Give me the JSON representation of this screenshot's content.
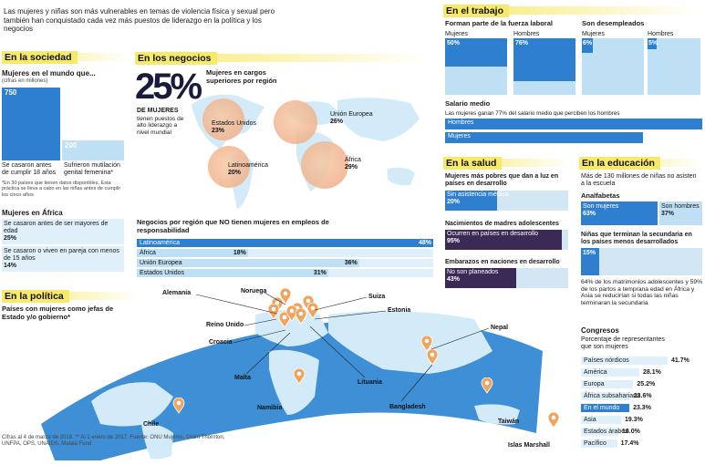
{
  "intro": "Las mujeres y niñas son más vulnerables en temas de violencia física y sexual pero también han conquistado cada vez más puestos de liderazgo en la política y los negocios",
  "sociedad": {
    "header": "En la sociedad",
    "title": "Mujeres en el mundo que...",
    "subtitle": "(cifras en millones)",
    "bar1_value": "750",
    "bar1_label": "Se casaron antes de cumplir 18 años",
    "bar2_value": "200",
    "bar2_label": "Sufrieron mutilación genital femenina*",
    "footnote": "*En 30 países que tienen datos disponibles. Esta práctica se lleva a cabo en las niñas antes de cumplir los cinco años",
    "africa_title": "Mujeres en África",
    "africa1_label": "Se casaron antes de ser mayores de edad",
    "africa1_value": "25%",
    "africa2_label": "Se casaron o viven en pareja con menos de 15 años",
    "africa2_value": "14%"
  },
  "negocios": {
    "header": "En los negocios",
    "big": "25%",
    "big_sub": "DE MUJERES",
    "big_desc": "tienen puestos de alto liderazgo a nivel mundial",
    "map_title": "Mujeres en cargos superiores por región",
    "regions": [
      {
        "name": "Estados Unidos",
        "value": "23%"
      },
      {
        "name": "Unión Europea",
        "value": "26%"
      },
      {
        "name": "Latinoamérica",
        "value": "20%"
      },
      {
        "name": "África",
        "value": "29%"
      }
    ],
    "nomen_title": "Negocios por región que NO tienen mujeres en empleos de responsabilidad",
    "nomen": [
      {
        "name": "Latinoamérica",
        "value": "48%",
        "pct": 48
      },
      {
        "name": "África",
        "value": "18%",
        "pct": 18
      },
      {
        "name": "Unión Europea",
        "value": "36%",
        "pct": 36
      },
      {
        "name": "Estados Unidos",
        "value": "31%",
        "pct": 31
      }
    ]
  },
  "trabajo": {
    "header": "En el trabajo",
    "fuerza_title": "Forman parte de la fuerza laboral",
    "desempleo_title": "Son desempleados",
    "mujeres": "Mujeres",
    "hombres": "Hombres",
    "fuerza_m": "50%",
    "fuerza_h": "76%",
    "des_m": "6%",
    "des_h": "5%",
    "fuerza_m_pct": 50,
    "fuerza_h_pct": 76,
    "des_m_pct": 6,
    "des_h_pct": 5,
    "salario_title": "Salario medio",
    "salario_sub": "Las mujeres ganan 77% del salario medio que perciben los hombres",
    "sal_h": "Hombres",
    "sal_m": "Mujeres",
    "sal_m_pct": 77
  },
  "salud": {
    "header": "En la salud",
    "t1": "Mujeres más pobres que dan a luz en países en desarrollo",
    "b1_label": "Sin asistencia médica",
    "b1_value": "20%",
    "b1_pct": 20,
    "t2": "Nacimientos de madres adolescentes",
    "b2_label": "Ocurren en países en desarrollo",
    "b2_value": "95%",
    "b2_pct": 95,
    "t3": "Embarazos en naciones en desarrollo",
    "b3_label": "No son planeados",
    "b3_value": "43%",
    "b3_pct": 43
  },
  "educacion": {
    "header": "En la educación",
    "intro": "Más de 130 millones de niñas no asisten a la escuela",
    "anal_title": "Analfabetas",
    "anal_m": "Son mujeres",
    "anal_m_value": "63%",
    "anal_h": "Son hombres",
    "anal_h_value": "37%",
    "sec_title": "Niñas que terminan la secundaria en los países menos desarrollados",
    "sec_value": "15%",
    "sec_pct": 15,
    "note": "64% de los matrimonios adolescentes y 59% de los partos a temprana edad en África y Asia se reducirían si todas las niñas terminaran la secundaria"
  },
  "politica": {
    "header": "En la política",
    "title": "Países con mujeres como jefas de Estado y/o gobierno*",
    "countries": [
      "Alemania",
      "Noruega",
      "Suiza",
      "Estonia",
      "Reino Unido",
      "Croacia",
      "Malta",
      "Lituania",
      "Nepal",
      "Namibia",
      "Bangladesh",
      "Taiwán",
      "Chile",
      "Islas Marshall"
    ]
  },
  "congresos": {
    "title": "Congresos",
    "subtitle": "Porcentaje de representantes que son mujeres",
    "rows": [
      {
        "name": "Países nórdicos",
        "value": "41.7%",
        "pct": 41.7
      },
      {
        "name": "América",
        "value": "28.1%",
        "pct": 28.1
      },
      {
        "name": "Europa",
        "value": "25.2%",
        "pct": 25.2
      },
      {
        "name": "África subsahariana",
        "value": "23.6%",
        "pct": 23.6
      },
      {
        "name": "En el mundo",
        "value": "23.3%",
        "pct": 23.3
      },
      {
        "name": "Asia",
        "value": "19.3%",
        "pct": 19.3
      },
      {
        "name": "Estados árabes",
        "value": "18.0%",
        "pct": 18.0
      },
      {
        "name": "Pacífico",
        "value": "17.4%",
        "pct": 17.4
      }
    ]
  },
  "source": "Cifras al 4 de marzo de 2018. ** Al 1 enero de 2017. Fuente: ONU Mujeres, Grant Thornton, UNFPA, OPS, UNAIDS, Malala Fund",
  "colors": {
    "accent_yellow": "#f7e96a",
    "blue": "#2f7fd0",
    "light_blue": "#bfe0f4",
    "dark": "#3a2a55",
    "orange": "#f0a55e"
  }
}
